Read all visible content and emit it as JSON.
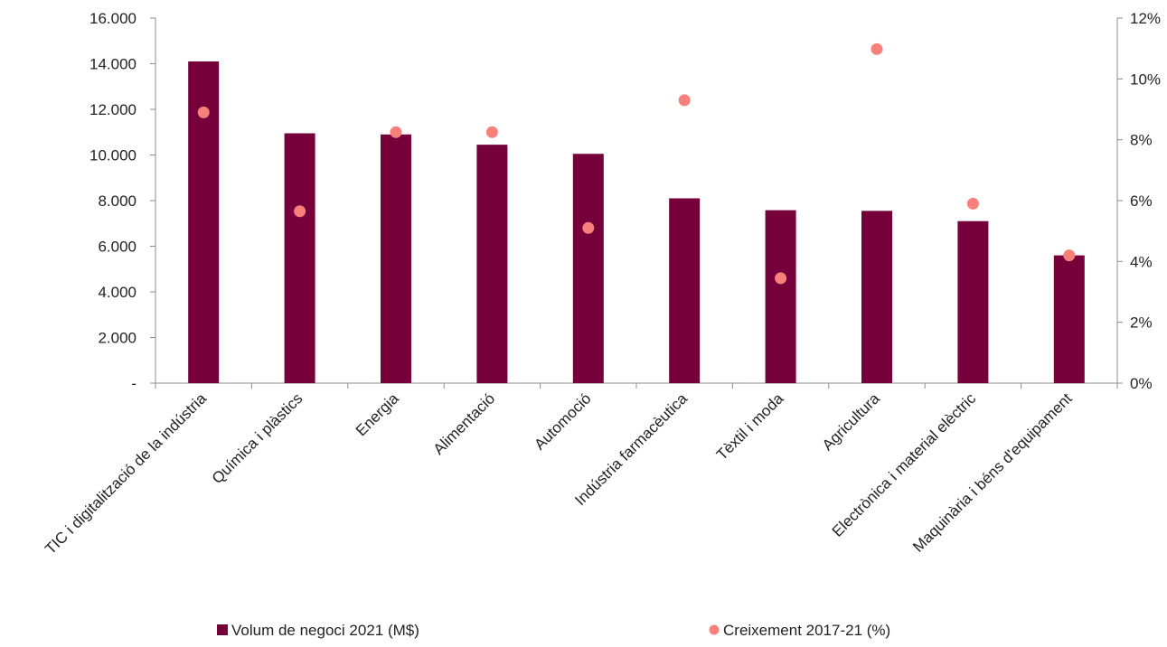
{
  "chart_data": {
    "type": "bar",
    "categories": [
      "TIC i digitalització de la indústria",
      "Química i plàstics",
      "Energia",
      "Alimentació",
      "Automoció",
      "Indústria farmacèutica",
      "Tèxtil i moda",
      "Agricultura",
      "Electrònica i material elèctric",
      "Maquinària i béns d'equipament"
    ],
    "series": [
      {
        "name": "Volum de negoci 2021 (M$)",
        "type": "bar",
        "axis": "left",
        "color": "#75003a",
        "values": [
          14100,
          10950,
          10900,
          10450,
          10050,
          8100,
          7580,
          7550,
          7100,
          5600
        ]
      },
      {
        "name": "Creixement 2017-21 (%)",
        "type": "scatter",
        "axis": "right",
        "color": "#f7807b",
        "values": [
          8.9,
          5.65,
          8.25,
          8.25,
          5.1,
          9.3,
          3.45,
          10.98,
          5.9,
          4.2
        ]
      }
    ],
    "y_left": {
      "ylim": [
        0,
        16000
      ],
      "ticks": [
        0,
        2000,
        4000,
        6000,
        8000,
        10000,
        12000,
        14000,
        16000
      ],
      "tick_labels": [
        "-",
        "2.000",
        "4.000",
        "6.000",
        "8.000",
        "10.000",
        "12.000",
        "14.000",
        "16.000"
      ]
    },
    "y_right": {
      "ylim": [
        0,
        12
      ],
      "ticks": [
        0,
        2,
        4,
        6,
        8,
        10,
        12
      ],
      "tick_labels": [
        "0%",
        "2%",
        "4%",
        "6%",
        "8%",
        "10%",
        "12%"
      ]
    },
    "grid": false,
    "legend": "bottom-center"
  }
}
